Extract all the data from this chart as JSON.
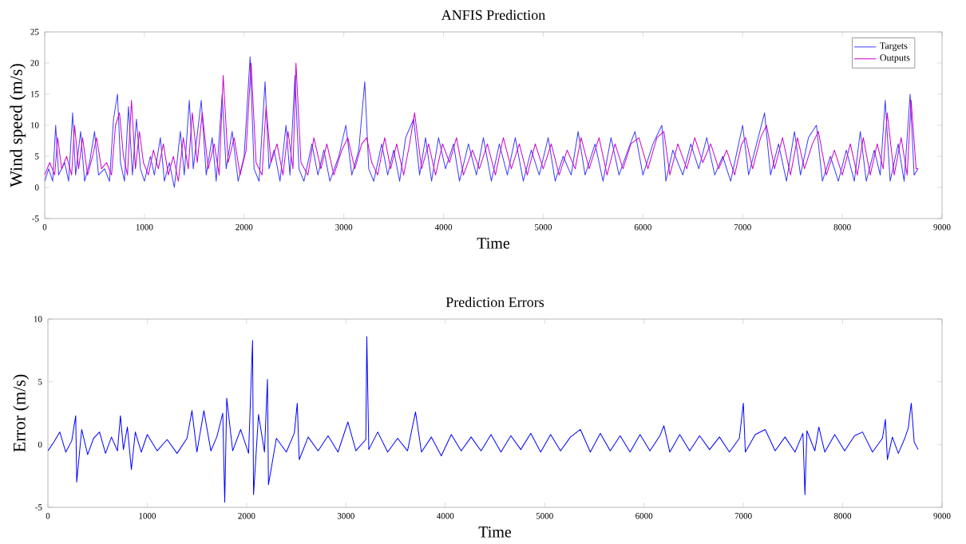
{
  "chart_data": [
    {
      "type": "line",
      "title": "ANFIS Prediction",
      "xlabel": "Time",
      "ylabel": "Wind speed (m/s)",
      "xlim": [
        0,
        9000
      ],
      "ylim": [
        -5,
        25
      ],
      "xticks": [
        0,
        1000,
        2000,
        3000,
        4000,
        5000,
        6000,
        7000,
        8000,
        9000
      ],
      "yticks": [
        -5,
        0,
        5,
        10,
        15,
        20,
        25
      ],
      "legend": "top right",
      "series": [
        {
          "name": "Targets",
          "color": "#3b3bff",
          "x": [
            0,
            40,
            80,
            110,
            140,
            200,
            240,
            280,
            310,
            360,
            400,
            450,
            500,
            540,
            600,
            650,
            690,
            730,
            760,
            800,
            840,
            880,
            920,
            960,
            1000,
            1060,
            1100,
            1160,
            1200,
            1250,
            1300,
            1360,
            1400,
            1450,
            1490,
            1570,
            1620,
            1680,
            1720,
            1780,
            1820,
            1880,
            1940,
            2000,
            2060,
            2100,
            2150,
            2210,
            2250,
            2300,
            2360,
            2420,
            2460,
            2510,
            2550,
            2600,
            2680,
            2740,
            2800,
            2860,
            2950,
            3020,
            3080,
            3150,
            3210,
            3250,
            3300,
            3380,
            3440,
            3500,
            3560,
            3620,
            3700,
            3760,
            3820,
            3880,
            3950,
            4020,
            4100,
            4160,
            4250,
            4330,
            4400,
            4480,
            4560,
            4640,
            4720,
            4800,
            4880,
            4960,
            5050,
            5120,
            5200,
            5280,
            5350,
            5420,
            5520,
            5600,
            5680,
            5760,
            5850,
            5920,
            6000,
            6100,
            6190,
            6230,
            6300,
            6400,
            6480,
            6560,
            6640,
            6720,
            6800,
            6880,
            6960,
            7000,
            7060,
            7140,
            7220,
            7280,
            7360,
            7440,
            7520,
            7580,
            7660,
            7740,
            7800,
            7880,
            7960,
            8040,
            8120,
            8180,
            8240,
            8320,
            8380,
            8430,
            8480,
            8560,
            8620,
            8680,
            8720,
            8760
          ],
          "values": [
            1,
            3,
            1,
            10,
            2,
            4,
            1,
            12,
            2,
            9,
            1,
            4,
            9,
            2,
            3,
            1,
            11,
            15,
            4,
            1,
            13,
            2,
            11,
            3,
            1,
            5,
            2,
            8,
            1,
            4,
            0,
            9,
            2,
            14,
            3,
            14,
            2,
            8,
            1,
            15,
            3,
            9,
            1,
            5,
            21,
            3,
            1,
            17,
            3,
            6,
            1,
            10,
            2,
            18,
            3,
            1,
            7,
            2,
            6,
            1,
            5,
            10,
            2,
            6,
            17,
            3,
            1,
            7,
            2,
            6,
            1,
            8,
            11,
            2,
            8,
            1,
            8,
            3,
            7,
            1,
            7,
            2,
            8,
            1,
            7,
            2,
            8,
            1,
            6,
            2,
            8,
            1,
            5,
            2,
            9,
            2,
            7,
            1,
            8,
            2,
            6,
            9,
            2,
            7,
            10,
            1,
            6,
            2,
            7,
            3,
            8,
            2,
            5,
            1,
            7,
            10,
            2,
            7,
            12,
            2,
            7,
            1,
            9,
            2,
            8,
            10,
            1,
            5,
            1,
            6,
            1,
            9,
            1,
            6,
            2,
            14,
            1,
            7,
            1,
            15,
            2,
            3
          ]
        },
        {
          "name": "Outputs",
          "color": "#cc00cc",
          "x": [
            0,
            50,
            100,
            130,
            170,
            220,
            270,
            300,
            340,
            380,
            430,
            480,
            520,
            570,
            620,
            670,
            710,
            750,
            790,
            830,
            870,
            910,
            950,
            990,
            1040,
            1090,
            1140,
            1190,
            1240,
            1290,
            1340,
            1390,
            1440,
            1480,
            1530,
            1580,
            1640,
            1700,
            1750,
            1790,
            1840,
            1900,
            1960,
            2020,
            2070,
            2120,
            2180,
            2220,
            2270,
            2330,
            2390,
            2440,
            2490,
            2520,
            2570,
            2640,
            2700,
            2770,
            2830,
            2900,
            2980,
            3040,
            3110,
            3180,
            3230,
            3280,
            3340,
            3410,
            3470,
            3530,
            3600,
            3660,
            3710,
            3780,
            3850,
            3920,
            3990,
            4060,
            4130,
            4200,
            4290,
            4360,
            4440,
            4520,
            4600,
            4680,
            4760,
            4840,
            4920,
            5000,
            5080,
            5160,
            5240,
            5320,
            5380,
            5460,
            5560,
            5640,
            5720,
            5800,
            5880,
            5960,
            6050,
            6140,
            6210,
            6270,
            6350,
            6440,
            6520,
            6600,
            6680,
            6760,
            6840,
            6920,
            6990,
            7030,
            7100,
            7180,
            7240,
            7320,
            7400,
            7480,
            7550,
            7620,
            7700,
            7760,
            7840,
            7920,
            8000,
            8080,
            8150,
            8210,
            8280,
            8350,
            8410,
            8450,
            8520,
            8590,
            8650,
            8690,
            8740,
            8760
          ],
          "values": [
            2,
            4,
            2,
            8,
            3,
            5,
            2,
            10,
            3,
            8,
            2,
            5,
            8,
            3,
            4,
            2,
            10,
            12,
            5,
            2,
            14,
            3,
            9,
            4,
            2,
            6,
            3,
            7,
            2,
            5,
            1,
            8,
            3,
            12,
            4,
            12,
            3,
            7,
            2,
            18,
            4,
            8,
            2,
            6,
            20,
            4,
            2,
            13,
            4,
            7,
            2,
            9,
            3,
            20,
            4,
            2,
            8,
            3,
            7,
            2,
            6,
            8,
            3,
            7,
            8,
            4,
            2,
            8,
            3,
            7,
            2,
            7,
            12,
            3,
            7,
            2,
            7,
            4,
            8,
            2,
            6,
            3,
            7,
            2,
            8,
            3,
            7,
            2,
            7,
            3,
            7,
            2,
            6,
            3,
            8,
            3,
            8,
            2,
            7,
            3,
            7,
            8,
            3,
            8,
            9,
            2,
            7,
            3,
            8,
            4,
            7,
            3,
            6,
            2,
            7,
            8,
            3,
            8,
            10,
            3,
            8,
            2,
            8,
            3,
            7,
            9,
            2,
            6,
            2,
            7,
            2,
            8,
            2,
            7,
            3,
            12,
            2,
            8,
            2,
            14,
            3,
            3
          ]
        }
      ]
    },
    {
      "type": "line",
      "title": "Prediction Errors",
      "xlabel": "Time",
      "ylabel": "Error (m/s)",
      "xlim": [
        0,
        9000
      ],
      "ylim": [
        -5,
        10
      ],
      "xticks": [
        0,
        1000,
        2000,
        3000,
        4000,
        5000,
        6000,
        7000,
        8000,
        9000
      ],
      "yticks": [
        -5,
        0,
        5,
        10
      ],
      "series": [
        {
          "color": "#0000ff",
          "x": [
            0,
            60,
            120,
            180,
            240,
            280,
            290,
            340,
            400,
            460,
            520,
            580,
            640,
            700,
            730,
            760,
            800,
            840,
            880,
            940,
            1000,
            1100,
            1200,
            1300,
            1400,
            1450,
            1500,
            1570,
            1640,
            1700,
            1760,
            1780,
            1800,
            1860,
            1940,
            2020,
            2060,
            2070,
            2120,
            2180,
            2210,
            2220,
            2300,
            2400,
            2480,
            2510,
            2530,
            2620,
            2720,
            2820,
            2920,
            3020,
            3100,
            3200,
            3210,
            3230,
            3320,
            3420,
            3520,
            3620,
            3700,
            3760,
            3860,
            3960,
            4060,
            4160,
            4260,
            4360,
            4460,
            4560,
            4660,
            4760,
            4860,
            4960,
            5060,
            5160,
            5260,
            5360,
            5460,
            5560,
            5660,
            5760,
            5860,
            5960,
            6060,
            6160,
            6200,
            6260,
            6360,
            6460,
            6560,
            6660,
            6760,
            6860,
            6960,
            7000,
            7020,
            7120,
            7220,
            7320,
            7420,
            7520,
            7600,
            7620,
            7640,
            7720,
            7760,
            7820,
            7920,
            8020,
            8120,
            8200,
            8300,
            8400,
            8430,
            8450,
            8500,
            8560,
            8620,
            8660,
            8690,
            8720,
            8760
          ],
          "values": [
            -0.5,
            0.2,
            1,
            -0.6,
            0.3,
            2.3,
            -3,
            1.2,
            -0.8,
            0.5,
            1,
            -0.7,
            0.6,
            -0.5,
            2.3,
            -0.4,
            1.4,
            -2,
            1,
            -0.6,
            0.8,
            -0.5,
            0.4,
            -0.7,
            0.5,
            2.7,
            -0.6,
            2.7,
            -0.5,
            0.6,
            2.5,
            -4.6,
            3.7,
            -0.5,
            1.2,
            -0.7,
            8.3,
            -4,
            2.4,
            -0.6,
            5.2,
            -3.2,
            0.5,
            -0.6,
            0.9,
            3.3,
            -1.2,
            0.6,
            -0.5,
            0.7,
            -0.6,
            1.8,
            -0.5,
            0.4,
            8.6,
            -0.4,
            1,
            -0.6,
            0.5,
            -0.5,
            2.6,
            -0.6,
            0.6,
            -0.9,
            0.8,
            -0.5,
            0.6,
            -0.5,
            0.8,
            -0.6,
            0.7,
            -0.4,
            0.9,
            -0.6,
            0.8,
            -0.5,
            0.6,
            1.2,
            -0.6,
            0.9,
            -0.5,
            0.7,
            -0.6,
            0.8,
            -0.5,
            0.7,
            1.5,
            -0.6,
            0.8,
            -0.5,
            0.7,
            -0.4,
            0.6,
            -0.6,
            0.5,
            3.3,
            -0.6,
            0.8,
            1.2,
            -0.5,
            0.6,
            -0.6,
            0.9,
            -4,
            1.1,
            -0.5,
            1.4,
            -0.6,
            0.8,
            -0.5,
            0.7,
            1,
            -0.6,
            0.5,
            2,
            -1.2,
            0.6,
            -0.7,
            0.4,
            1.3,
            3.3,
            0.2,
            -0.4
          ]
        }
      ]
    }
  ]
}
